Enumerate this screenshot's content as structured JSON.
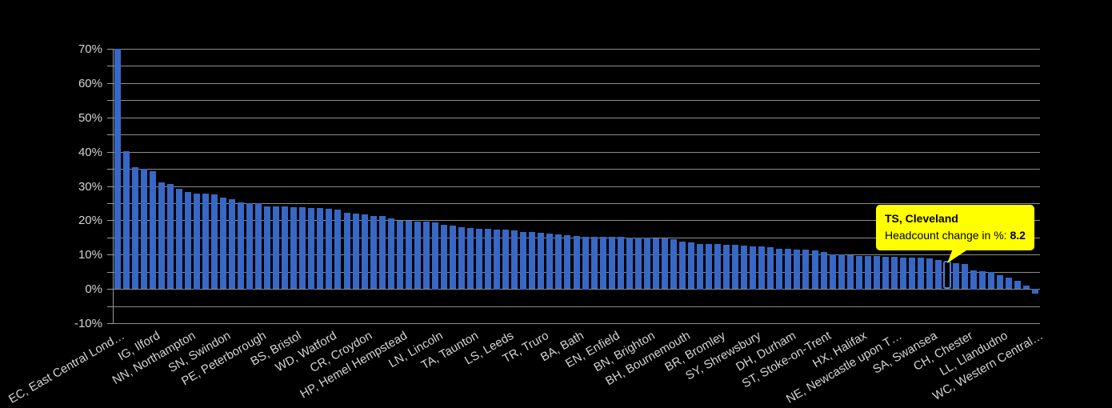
{
  "chart": {
    "background": "#000000",
    "bar_color": "#3768c5",
    "grid_color": "#8c8c8c",
    "axis_label_color": "#d4d4d4",
    "selected_bar_border": "#4f7ed6",
    "tooltip_background": "#ffff00"
  },
  "chart_data": {
    "type": "bar",
    "title": "",
    "xlabel": "",
    "ylabel": "Headcount change in %",
    "ylim": [
      -10,
      70
    ],
    "grid": true,
    "minor_grid_step": 5,
    "yticks": [
      "70%",
      "60%",
      "50%",
      "40%",
      "30%",
      "20%",
      "10%",
      "0%",
      "-10%"
    ],
    "ytick_values": [
      70,
      60,
      50,
      40,
      30,
      20,
      10,
      0,
      -10
    ],
    "label_every": 4,
    "categories_shown": [
      "EC, East Central Lond…",
      "IG, Ilford",
      "NN, Northampton",
      "SN, Swindon",
      "PE, Peterborough",
      "BS, Bristol",
      "WD, Watford",
      "CR, Croydon",
      "HP, Hemel Hempstead",
      "LN, Lincoln",
      "TA, Taunton",
      "LS, Leeds",
      "TR, Truro",
      "BA, Bath",
      "EN, Enfield",
      "BN, Brighton",
      "BH, Bournemouth",
      "BR, Bromley",
      "SY, Shrewsbury",
      "DH, Durham",
      "ST, Stoke-on-Trent",
      "HX, Halifax",
      "NE, Newcastle upon T…",
      "SA, Swansea",
      "CH, Chester",
      "LL, Llandudno",
      "WC, Western Central…"
    ],
    "values": [
      70,
      40.2,
      35.5,
      35,
      34.2,
      31,
      30.5,
      29.2,
      28.2,
      27.9,
      27.7,
      27.6,
      26.7,
      26.2,
      25.2,
      25.1,
      25,
      24.1,
      24,
      24,
      23.9,
      23.8,
      23.7,
      23.5,
      23.4,
      23.2,
      22.1,
      22,
      21.7,
      21.3,
      21.2,
      20.5,
      19.9,
      19.8,
      19.7,
      19.6,
      19.5,
      18.7,
      18.4,
      18,
      17.8,
      17.6,
      17.5,
      17.4,
      17.3,
      17,
      16.7,
      16.5,
      16.3,
      16.1,
      15.8,
      15.6,
      15.4,
      15.3,
      15.2,
      15.2,
      15.1,
      15.1,
      15,
      15,
      14.9,
      14.8,
      14.7,
      14.4,
      13.8,
      13.5,
      13.2,
      13.1,
      13,
      12.9,
      12.8,
      12.7,
      12.5,
      12.3,
      12.1,
      11.8,
      11.7,
      11.5,
      11.4,
      11.2,
      10.7,
      10.1,
      10,
      9.8,
      9.7,
      9.6,
      9.5,
      9.4,
      9.3,
      9.2,
      9.1,
      9.1,
      8.9,
      8.5,
      8.2,
      7.5,
      7.2,
      5.5,
      5.2,
      5,
      3.9,
      3.3,
      2.3,
      1,
      -1.5
    ],
    "highlight_index": 94,
    "highlight_category": "TS, Cleveland",
    "highlight_value": 8.2,
    "legend": "off"
  },
  "tooltip": {
    "title": "TS, Cleveland",
    "metric_label": "Headcount change in %: ",
    "value": "8.2"
  }
}
